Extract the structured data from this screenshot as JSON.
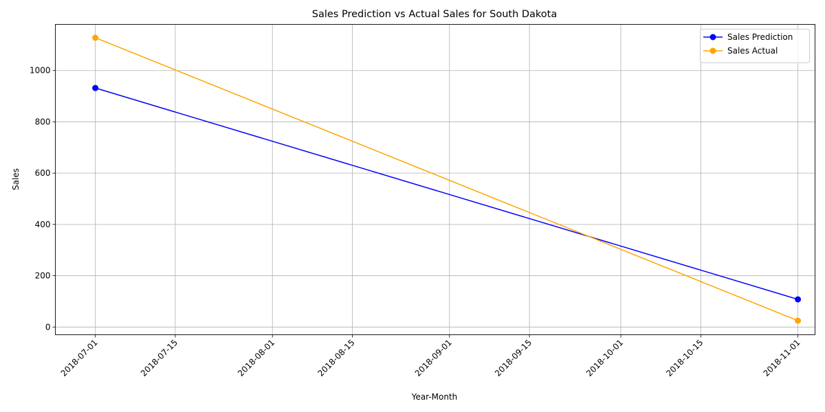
{
  "chart_data": {
    "type": "line",
    "title": "Sales Prediction vs Actual Sales for South Dakota",
    "xlabel": "Year-Month",
    "ylabel": "Sales",
    "x_type": "date",
    "xlim": [
      "2018-06-24",
      "2018-11-04"
    ],
    "ylim": [
      -30,
      1180
    ],
    "x_ticks": [
      "2018-07-01",
      "2018-07-15",
      "2018-08-01",
      "2018-08-15",
      "2018-09-01",
      "2018-09-15",
      "2018-10-01",
      "2018-10-15",
      "2018-11-01"
    ],
    "y_ticks": [
      0,
      200,
      400,
      600,
      800,
      1000
    ],
    "grid": true,
    "legend_position": "top-right",
    "series": [
      {
        "name": "Sales Prediction",
        "color": "#0000ff",
        "marker": "circle",
        "x": [
          "2018-07-01",
          "2018-11-01"
        ],
        "y": [
          932,
          108
        ]
      },
      {
        "name": "Sales Actual",
        "color": "#ffa500",
        "marker": "circle",
        "x": [
          "2018-07-01",
          "2018-11-01"
        ],
        "y": [
          1128,
          25
        ]
      }
    ]
  }
}
